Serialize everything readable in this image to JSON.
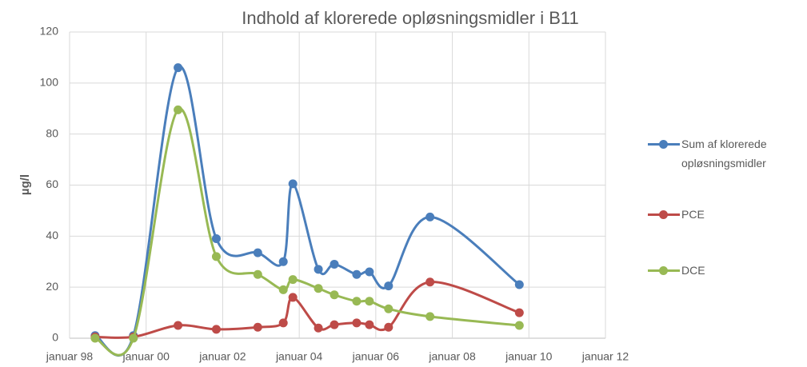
{
  "chart_data": {
    "type": "line",
    "title": "Indhold af klorerede opløsningsmidler i B11",
    "y_label": "µg/l",
    "x": [
      "1998-09",
      "1999-09",
      "2000-11",
      "2001-11",
      "2002-12",
      "2003-08",
      "2003-11",
      "2004-07",
      "2004-12",
      "2005-07",
      "2005-11",
      "2006-05",
      "2007-06",
      "2009-10"
    ],
    "series": [
      {
        "name": "Sum af klorerede opløsningsmidler",
        "color": "#4a7ebb",
        "values": [
          1,
          1,
          106,
          39,
          33.5,
          30,
          60.5,
          27,
          29,
          25,
          26,
          20.5,
          47.5,
          21
        ]
      },
      {
        "name": "PCE",
        "color": "#be4b48",
        "values": [
          0.5,
          0.5,
          5,
          3.5,
          4.3,
          6,
          16,
          4,
          5.3,
          6,
          5.3,
          4.3,
          22,
          10
        ]
      },
      {
        "name": "DCE",
        "color": "#98b954",
        "values": [
          0,
          0,
          89.5,
          32,
          25,
          19,
          23,
          19.5,
          17,
          14.5,
          14.5,
          11.5,
          8.5,
          5
        ]
      }
    ],
    "xlim": [
      "1998-01",
      "2012-01"
    ],
    "xticks": [
      {
        "value": "1998-01",
        "label": "januar 98"
      },
      {
        "value": "2000-01",
        "label": "januar 00"
      },
      {
        "value": "2002-01",
        "label": "januar 02"
      },
      {
        "value": "2004-01",
        "label": "januar 04"
      },
      {
        "value": "2006-01",
        "label": "januar 06"
      },
      {
        "value": "2008-01",
        "label": "januar 08"
      },
      {
        "value": "2010-01",
        "label": "januar 10"
      },
      {
        "value": "2012-01",
        "label": "januar 12"
      }
    ],
    "ylim": [
      0,
      120
    ],
    "yticks": [
      0,
      20,
      40,
      60,
      80,
      100,
      120
    ],
    "grid": true,
    "legend": "right"
  }
}
